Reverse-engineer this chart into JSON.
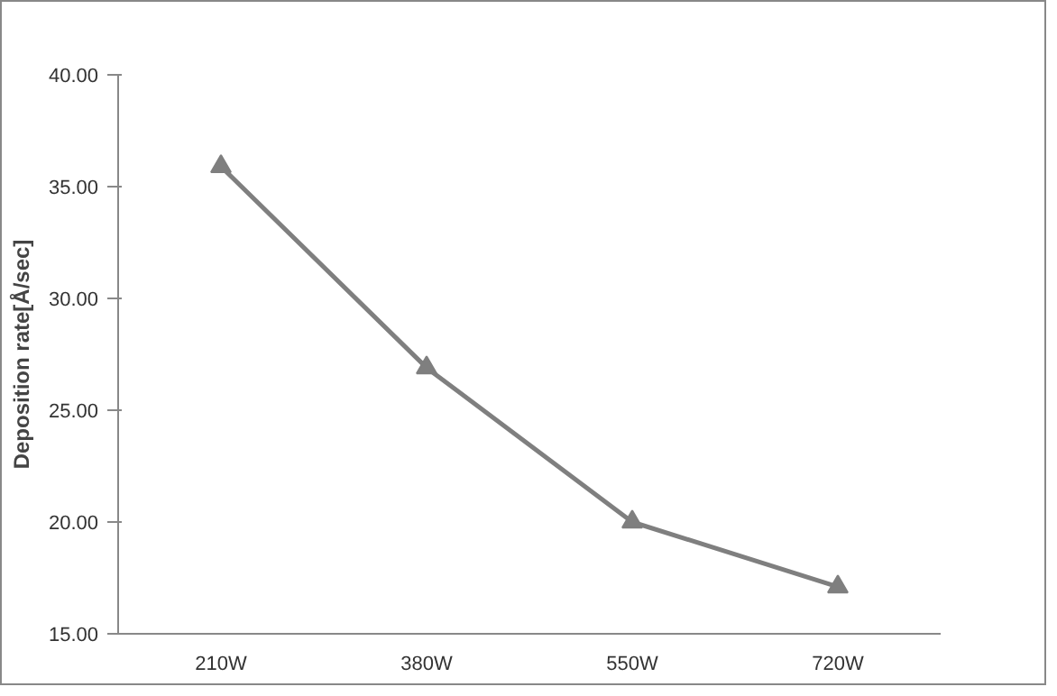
{
  "chart_data": {
    "type": "line",
    "ylabel": "Deposition rate[Å/sec]",
    "categories": [
      "210W",
      "380W",
      "550W",
      "720W"
    ],
    "series": [
      {
        "color": "#7f7f7f",
        "values": [
          35.9,
          26.9,
          20.0,
          17.1
        ]
      }
    ],
    "ylim": [
      15,
      40
    ],
    "yticks": [
      {
        "value": 15,
        "label": "15.00"
      },
      {
        "value": 20,
        "label": "20.00"
      },
      {
        "value": 25,
        "label": "25.00"
      },
      {
        "value": 30,
        "label": "30.00"
      },
      {
        "value": 35,
        "label": "35.00"
      },
      {
        "value": 40,
        "label": "40.00"
      }
    ],
    "grid": false,
    "marker": "triangle",
    "line_style": "solid"
  }
}
